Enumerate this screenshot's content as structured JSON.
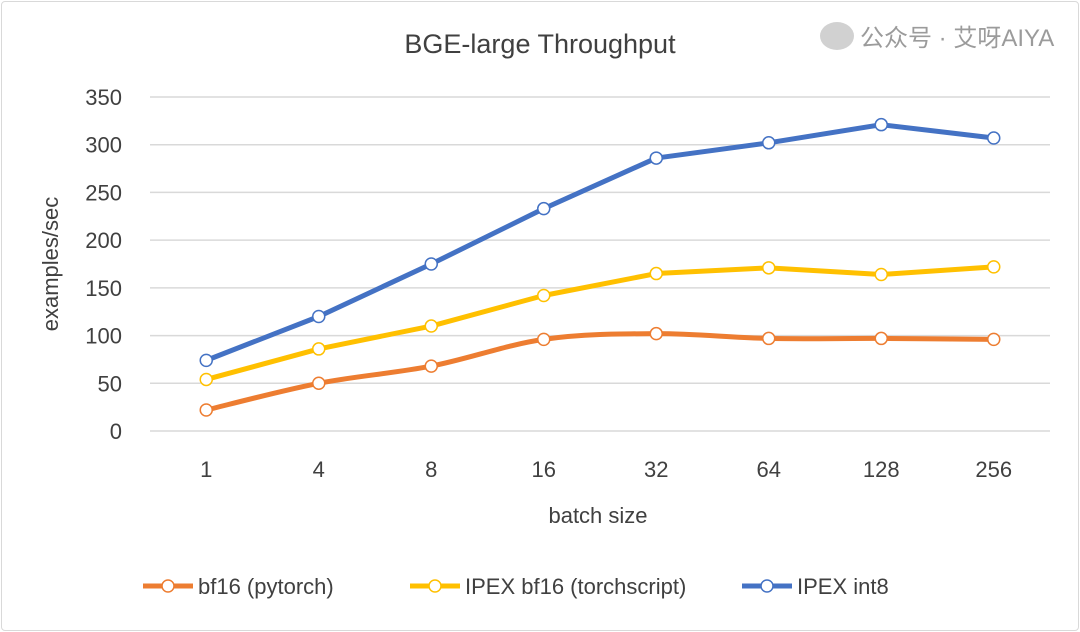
{
  "chart_data": {
    "type": "line",
    "title": "BGE-large Throughput",
    "xlabel": "batch size",
    "ylabel": "examples/sec",
    "categories": [
      "1",
      "4",
      "8",
      "16",
      "32",
      "64",
      "128",
      "256"
    ],
    "ylim": [
      0,
      350
    ],
    "yticks": [
      0,
      50,
      100,
      150,
      200,
      250,
      300,
      350
    ],
    "grid": true,
    "legend": "bottom",
    "series": [
      {
        "name": "bf16 (pytorch)",
        "color": "#ed7d31",
        "smooth": true,
        "values": [
          22,
          50,
          68,
          96,
          102,
          97,
          97,
          96
        ]
      },
      {
        "name": "IPEX bf16 (torchscript)",
        "color": "#ffc000",
        "smooth": false,
        "values": [
          54,
          86,
          110,
          142,
          165,
          171,
          164,
          172
        ]
      },
      {
        "name": "IPEX int8",
        "color": "#4472c4",
        "smooth": false,
        "values": [
          74,
          120,
          175,
          233,
          286,
          302,
          321,
          307
        ]
      }
    ]
  },
  "watermark": "公众号 · 艾呀AIYA"
}
